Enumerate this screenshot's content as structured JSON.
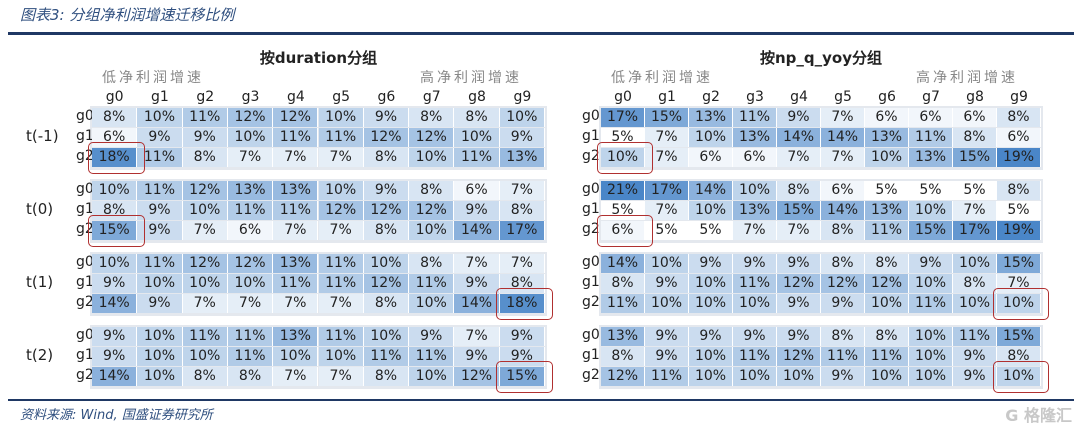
{
  "title": "图表3: 分组净利润增速迁移比例",
  "source": "资料来源: Wind, 国盛证券研究所",
  "watermark": "格隆汇",
  "colors": {
    "cell_max": "#4a86c8",
    "cell_min": "#ffffff",
    "highlight": "#b03030",
    "rule": "#1f3864"
  },
  "chart_data": {
    "type": "heatmap",
    "unit": "%",
    "columns": [
      "g0",
      "g1",
      "g2",
      "g3",
      "g4",
      "g5",
      "g6",
      "g7",
      "g8",
      "g9"
    ],
    "rows": [
      "g0",
      "g1",
      "g2"
    ],
    "periods": [
      "t(-1)",
      "t(0)",
      "t(1)",
      "t(2)"
    ],
    "low_label": "低净利润增速",
    "high_label": "高净利润增速",
    "panels": [
      {
        "title": "按duration分组",
        "blocks": [
          [
            [
              8,
              10,
              11,
              12,
              12,
              10,
              9,
              8,
              8,
              10
            ],
            [
              6,
              9,
              9,
              10,
              11,
              11,
              12,
              12,
              10,
              9
            ],
            [
              18,
              11,
              8,
              7,
              7,
              7,
              8,
              10,
              11,
              13
            ]
          ],
          [
            [
              10,
              11,
              12,
              13,
              13,
              10,
              9,
              8,
              6,
              7
            ],
            [
              8,
              9,
              10,
              11,
              11,
              12,
              12,
              12,
              9,
              8
            ],
            [
              15,
              9,
              7,
              6,
              7,
              7,
              8,
              10,
              14,
              17
            ]
          ],
          [
            [
              10,
              11,
              12,
              12,
              13,
              11,
              10,
              8,
              7,
              7
            ],
            [
              9,
              10,
              10,
              10,
              11,
              11,
              12,
              11,
              9,
              8
            ],
            [
              14,
              9,
              7,
              7,
              7,
              7,
              8,
              10,
              14,
              18
            ]
          ],
          [
            [
              9,
              10,
              11,
              11,
              13,
              11,
              10,
              9,
              7,
              9
            ],
            [
              9,
              10,
              10,
              11,
              10,
              10,
              11,
              11,
              9,
              9
            ],
            [
              14,
              10,
              8,
              8,
              7,
              7,
              8,
              10,
              12,
              15
            ]
          ]
        ],
        "highlights": [
          [
            0,
            2,
            0
          ],
          [
            1,
            2,
            0
          ],
          [
            2,
            2,
            9
          ],
          [
            3,
            2,
            9
          ]
        ]
      },
      {
        "title": "按np_q_yoy分组",
        "blocks": [
          [
            [
              17,
              15,
              13,
              11,
              9,
              7,
              6,
              6,
              6,
              8
            ],
            [
              5,
              7,
              10,
              13,
              14,
              14,
              13,
              11,
              8,
              6
            ],
            [
              10,
              7,
              6,
              6,
              7,
              7,
              10,
              13,
              15,
              19
            ]
          ],
          [
            [
              21,
              17,
              14,
              10,
              8,
              6,
              5,
              5,
              5,
              8
            ],
            [
              5,
              7,
              10,
              13,
              15,
              14,
              13,
              10,
              7,
              5
            ],
            [
              6,
              5,
              5,
              7,
              7,
              8,
              11,
              15,
              17,
              19
            ]
          ],
          [
            [
              14,
              10,
              9,
              9,
              9,
              8,
              8,
              9,
              10,
              15
            ],
            [
              8,
              9,
              10,
              11,
              12,
              12,
              12,
              10,
              8,
              7
            ],
            [
              11,
              10,
              10,
              10,
              9,
              9,
              10,
              11,
              10,
              10
            ]
          ],
          [
            [
              13,
              9,
              9,
              9,
              9,
              8,
              8,
              10,
              11,
              15
            ],
            [
              8,
              9,
              10,
              11,
              12,
              11,
              11,
              10,
              9,
              8
            ],
            [
              12,
              11,
              10,
              10,
              10,
              9,
              10,
              10,
              9,
              10
            ]
          ]
        ],
        "highlights": [
          [
            0,
            2,
            0
          ],
          [
            1,
            2,
            0
          ],
          [
            2,
            2,
            9
          ],
          [
            3,
            2,
            9
          ]
        ]
      }
    ]
  }
}
